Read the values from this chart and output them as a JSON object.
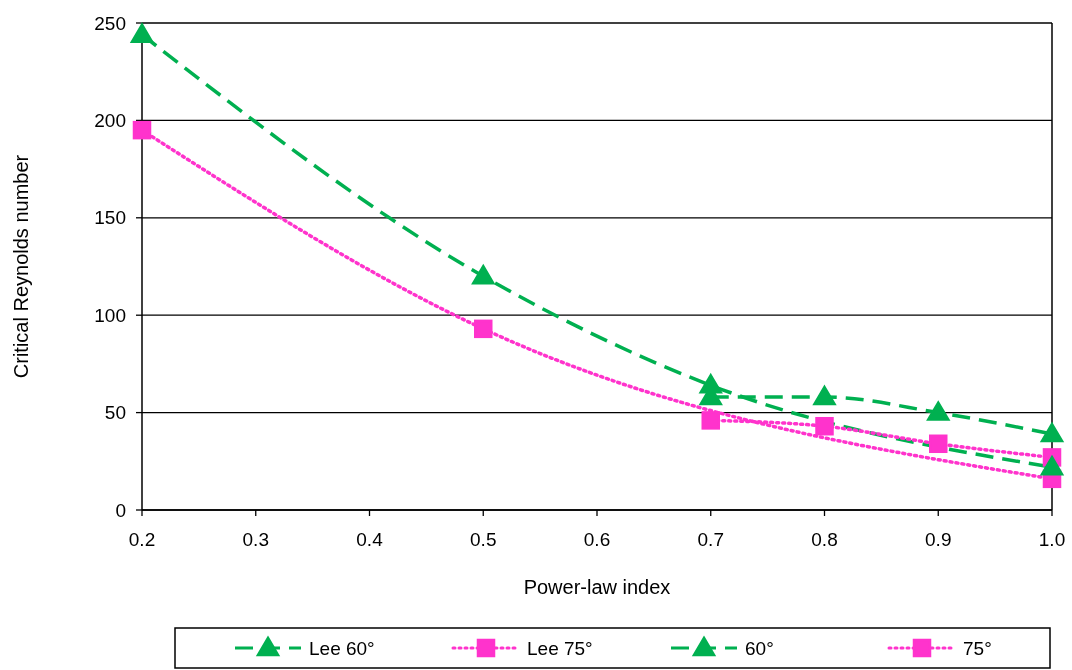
{
  "chart_data": {
    "type": "line",
    "xlabel": "Power-law index",
    "ylabel": "Critical Reynolds number",
    "xlim": [
      0.2,
      1.0
    ],
    "xticks": [
      0.2,
      0.3,
      0.4,
      0.5,
      0.6,
      0.7,
      0.8,
      0.9,
      {
        "value": 1.0,
        "label": "1.0"
      }
    ],
    "ylim": [
      0,
      250
    ],
    "yticks": [
      0,
      50,
      100,
      150,
      200,
      250
    ],
    "grid": "y",
    "legend": "bottom",
    "series": [
      {
        "name": "Lee 60°",
        "color": "#00b050",
        "x": [
          0.2,
          0.5,
          0.7,
          1.0
        ],
        "values": [
          244,
          120,
          64,
          22
        ],
        "marker": "triangle",
        "line_style": "dashed"
      },
      {
        "name": "Lee 75°",
        "color": "#ff33cc",
        "x": [
          0.2,
          0.5,
          1.0
        ],
        "values": [
          195,
          93,
          16
        ],
        "marker": "square",
        "line_style": "dotted"
      },
      {
        "name": "60°",
        "color": "#00b050",
        "x": [
          0.7,
          0.8,
          0.9,
          1.0
        ],
        "values": [
          58,
          58,
          50,
          39
        ],
        "marker": "triangle",
        "line_style": "dashed"
      },
      {
        "name": "75°",
        "color": "#ff33cc",
        "x": [
          0.7,
          0.8,
          0.9,
          1.0
        ],
        "values": [
          46,
          43,
          34,
          27
        ],
        "marker": "square",
        "line_style": "dotted"
      }
    ]
  }
}
